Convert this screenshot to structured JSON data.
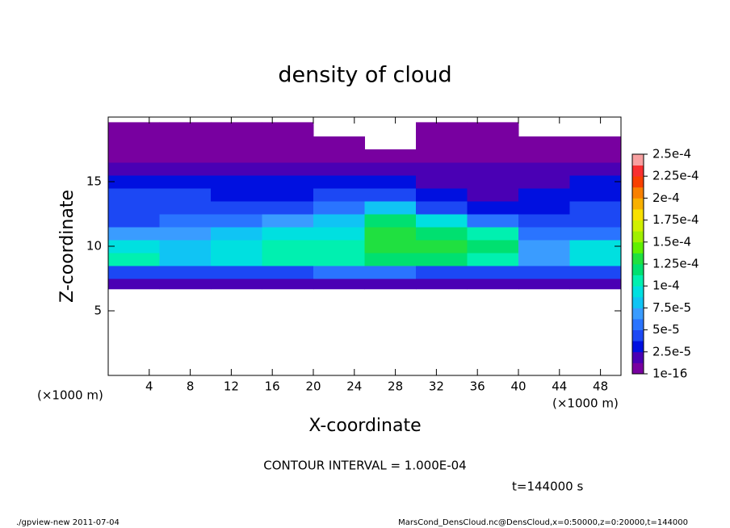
{
  "chart_data": {
    "type": "heatmap",
    "title": "density of cloud",
    "x_label": "X-coordinate",
    "y_label": "Z-coordinate",
    "x_unit": "(×1000 m)",
    "y_unit": "(×1000 m)",
    "contour_note": "CONTOUR INTERVAL = 1.000E-04",
    "time_note": "t=144000 s",
    "footer_left": "./gpview-new  2011-07-04",
    "footer_right": "MarsCond_DensCloud.nc@DensCloud,x=0:50000,z=0:20000,t=144000",
    "xlim": [
      0,
      50
    ],
    "ylim": [
      0,
      20
    ],
    "xticks": [
      4,
      8,
      12,
      16,
      20,
      24,
      28,
      32,
      36,
      40,
      44,
      48
    ],
    "yticks": [
      5,
      10,
      15
    ],
    "xbins": [
      0,
      5,
      10,
      15,
      20,
      25,
      30,
      35,
      40,
      45,
      50
    ],
    "ybins": [
      6.7,
      7.5,
      8.5,
      9.5,
      10.5,
      11.5,
      12.5,
      13.5,
      14.5,
      15.5,
      16.5,
      17.5,
      18.5,
      19.6
    ],
    "values": [
      [
        2e-05,
        2e-05,
        2e-05,
        2e-05,
        2e-05,
        2e-05,
        2e-05,
        2e-05,
        2e-05,
        2e-05
      ],
      [
        5e-05,
        5e-05,
        5e-05,
        5e-05,
        6e-05,
        6e-05,
        5e-05,
        5e-05,
        5e-05,
        5e-05
      ],
      [
        0.00011,
        8e-05,
        9e-05,
        0.000105,
        0.000105,
        0.00012,
        0.00012,
        0.00011,
        7e-05,
        0.0001
      ],
      [
        9e-05,
        8e-05,
        0.0001,
        0.000105,
        0.00011,
        0.00013,
        0.00013,
        0.00012,
        7e-05,
        9e-05
      ],
      [
        7e-05,
        7e-05,
        8e-05,
        9e-05,
        0.0001,
        0.00013,
        0.000125,
        0.000105,
        6e-05,
        6e-05
      ],
      [
        5e-05,
        6e-05,
        6e-05,
        7e-05,
        8e-05,
        0.000115,
        9e-05,
        6e-05,
        5e-05,
        5e-05
      ],
      [
        4e-05,
        5e-05,
        5e-05,
        5e-05,
        6e-05,
        8e-05,
        5e-05,
        3e-05,
        3e-05,
        4e-05
      ],
      [
        4e-05,
        4e-05,
        3e-05,
        3e-05,
        4e-05,
        4e-05,
        3e-05,
        2e-05,
        3e-05,
        3e-05
      ],
      [
        3e-05,
        3e-05,
        3e-05,
        3e-05,
        3e-05,
        3e-05,
        2e-05,
        2e-05,
        2e-05,
        3e-05
      ],
      [
        2e-05,
        2e-05,
        2e-05,
        2e-05,
        2e-05,
        2e-05,
        1.5e-05,
        1.5e-05,
        2e-05,
        2e-05
      ],
      [
        1e-05,
        1e-05,
        1e-05,
        1e-05,
        1e-05,
        8e-06,
        1e-05,
        1e-05,
        1e-05,
        1e-05
      ],
      [
        5e-06,
        5e-06,
        5e-06,
        5e-06,
        5e-06,
        null,
        5e-06,
        5e-06,
        5e-06,
        5e-06
      ],
      [
        3e-06,
        3e-06,
        3e-06,
        3e-06,
        null,
        null,
        3e-06,
        3e-06,
        null,
        null
      ]
    ],
    "clim": [
      1e-16,
      0.00025
    ],
    "colors": [
      "#7800a0",
      "#4a00b4",
      "#0010e0",
      "#1c48f4",
      "#2a74ff",
      "#3a9cff",
      "#10c4f4",
      "#00e0e0",
      "#00f0b0",
      "#00e070",
      "#20e040",
      "#60f000",
      "#a0f000",
      "#d0f000",
      "#f8e000",
      "#f8b000",
      "#f88000",
      "#f84000",
      "#f83030",
      "#f8a0a0"
    ],
    "colorbar_ticks": [
      {
        "value": 1e-16,
        "label": "1e-16"
      },
      {
        "value": 2.5e-05,
        "label": "2.5e-5"
      },
      {
        "value": 5e-05,
        "label": "5e-5"
      },
      {
        "value": 7.5e-05,
        "label": "7.5e-5"
      },
      {
        "value": 0.0001,
        "label": "1e-4"
      },
      {
        "value": 0.000125,
        "label": "1.25e-4"
      },
      {
        "value": 0.00015,
        "label": "1.5e-4"
      },
      {
        "value": 0.000175,
        "label": "1.75e-4"
      },
      {
        "value": 0.0002,
        "label": "2e-4"
      },
      {
        "value": 0.000225,
        "label": "2.25e-4"
      },
      {
        "value": 0.00025,
        "label": "2.5e-4"
      }
    ]
  }
}
